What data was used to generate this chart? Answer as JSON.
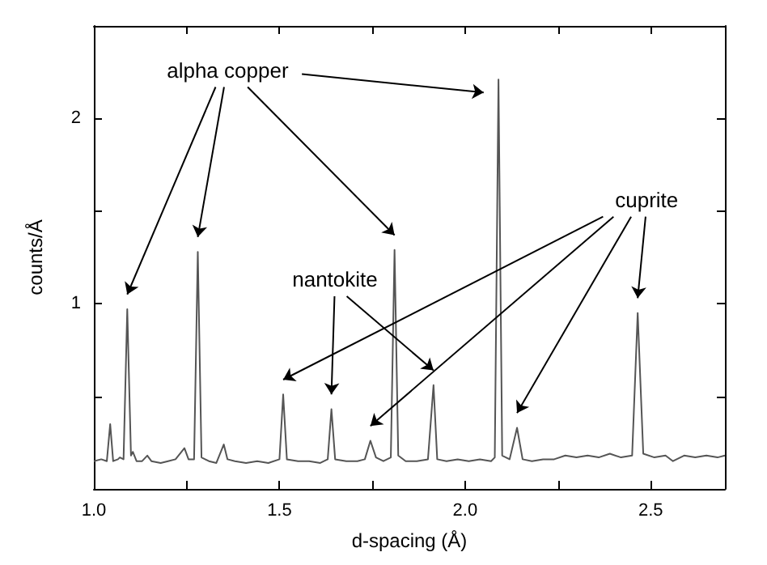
{
  "chart_data": {
    "type": "line",
    "xlabel": "d-spacing (Å)",
    "ylabel": "counts/Å",
    "x": [
      1.0,
      1.02,
      1.035,
      1.044,
      1.052,
      1.065,
      1.07,
      1.08,
      1.09,
      1.1,
      1.105,
      1.115,
      1.13,
      1.144,
      1.155,
      1.18,
      1.2,
      1.22,
      1.244,
      1.255,
      1.27,
      1.28,
      1.29,
      1.31,
      1.33,
      1.35,
      1.36,
      1.38,
      1.41,
      1.44,
      1.47,
      1.5,
      1.51,
      1.52,
      1.55,
      1.58,
      1.61,
      1.63,
      1.64,
      1.65,
      1.68,
      1.71,
      1.73,
      1.745,
      1.76,
      1.78,
      1.8,
      1.81,
      1.82,
      1.84,
      1.87,
      1.9,
      1.915,
      1.925,
      1.95,
      1.98,
      2.01,
      2.04,
      2.07,
      2.08,
      2.09,
      2.1,
      2.12,
      2.14,
      2.155,
      2.18,
      2.21,
      2.24,
      2.27,
      2.3,
      2.33,
      2.36,
      2.39,
      2.42,
      2.45,
      2.465,
      2.48,
      2.51,
      2.54,
      2.56,
      2.59,
      2.62,
      2.65,
      2.68,
      2.7
    ],
    "series": [
      {
        "color": "#555555",
        "values": [
          0.15,
          0.16,
          0.15,
          0.35,
          0.15,
          0.16,
          0.17,
          0.16,
          0.97,
          0.18,
          0.2,
          0.15,
          0.15,
          0.18,
          0.15,
          0.14,
          0.15,
          0.16,
          0.22,
          0.16,
          0.16,
          1.28,
          0.17,
          0.15,
          0.14,
          0.24,
          0.16,
          0.15,
          0.14,
          0.15,
          0.14,
          0.16,
          0.51,
          0.16,
          0.15,
          0.15,
          0.14,
          0.16,
          0.43,
          0.16,
          0.15,
          0.15,
          0.16,
          0.26,
          0.17,
          0.15,
          0.17,
          1.29,
          0.18,
          0.15,
          0.15,
          0.16,
          0.56,
          0.16,
          0.15,
          0.16,
          0.15,
          0.16,
          0.15,
          0.17,
          2.21,
          0.18,
          0.16,
          0.33,
          0.16,
          0.15,
          0.16,
          0.16,
          0.18,
          0.17,
          0.18,
          0.17,
          0.19,
          0.17,
          0.18,
          0.95,
          0.19,
          0.17,
          0.18,
          0.15,
          0.18,
          0.17,
          0.18,
          0.17,
          0.18
        ]
      }
    ],
    "xlim": [
      1.0,
      2.7
    ],
    "xticks": [
      {
        "value": 1.0,
        "label": "1.0"
      },
      {
        "value": 1.25,
        "label": null
      },
      1.5,
      {
        "value": 1.75,
        "label": null
      },
      {
        "value": 2.0,
        "label": "2.0"
      },
      {
        "value": 2.25,
        "label": null
      },
      2.5
    ],
    "ylim": [
      0,
      2.5
    ],
    "yticks": [
      {
        "value": 0.5,
        "label": null
      },
      1,
      {
        "value": 1.5,
        "label": null
      },
      2
    ],
    "grid": false,
    "marker": "none",
    "line_style": "solid",
    "annotations": [
      "alpha copper",
      "nantokite",
      "cuprite"
    ]
  }
}
